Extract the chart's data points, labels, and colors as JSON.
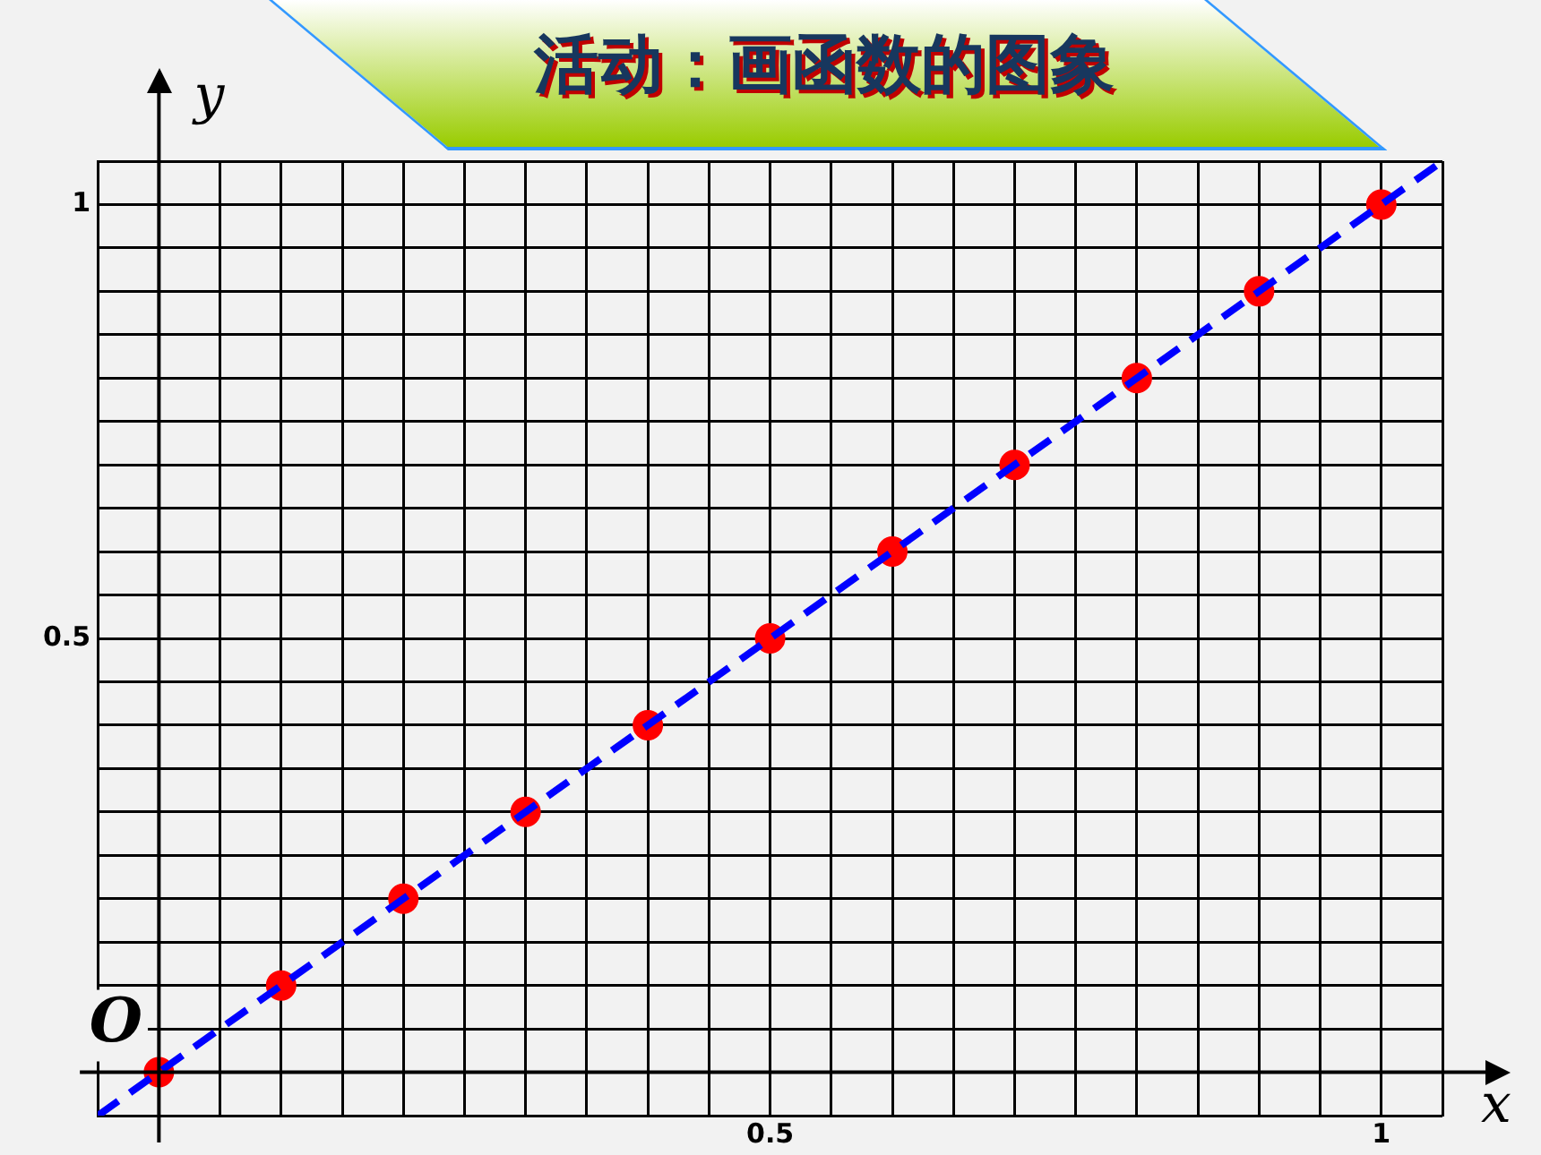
{
  "chart_data": {
    "type": "scatter",
    "title": "活动：画函数的图象",
    "xlabel": "x",
    "ylabel": "y",
    "annotations": [
      {
        "text": "O",
        "x": 0,
        "y": 0
      }
    ],
    "xlim": [
      -0.05,
      1.05
    ],
    "ylim": [
      -0.05,
      1.05
    ],
    "xticks": [
      {
        "value": -0.05,
        "label": null
      },
      {
        "value": 0,
        "label": null
      },
      {
        "value": 0.05,
        "label": null
      },
      {
        "value": 0.1,
        "label": null
      },
      {
        "value": 0.15,
        "label": null
      },
      {
        "value": 0.2,
        "label": null
      },
      {
        "value": 0.25,
        "label": null
      },
      {
        "value": 0.3,
        "label": null
      },
      {
        "value": 0.35,
        "label": null
      },
      {
        "value": 0.4,
        "label": null
      },
      {
        "value": 0.45,
        "label": null
      },
      0.5,
      {
        "value": 0.55,
        "label": null
      },
      {
        "value": 0.6,
        "label": null
      },
      {
        "value": 0.65,
        "label": null
      },
      {
        "value": 0.7,
        "label": null
      },
      {
        "value": 0.75,
        "label": null
      },
      {
        "value": 0.8,
        "label": null
      },
      {
        "value": 0.85,
        "label": null
      },
      {
        "value": 0.9,
        "label": null
      },
      {
        "value": 0.95,
        "label": null
      },
      1,
      {
        "value": 1.05,
        "label": null
      }
    ],
    "yticks": [
      {
        "value": -0.05,
        "label": null
      },
      {
        "value": 0,
        "label": null
      },
      {
        "value": 0.05,
        "label": null
      },
      {
        "value": 0.1,
        "label": null
      },
      {
        "value": 0.15,
        "label": null
      },
      {
        "value": 0.2,
        "label": null
      },
      {
        "value": 0.25,
        "label": null
      },
      {
        "value": 0.3,
        "label": null
      },
      {
        "value": 0.35,
        "label": null
      },
      {
        "value": 0.4,
        "label": null
      },
      {
        "value": 0.45,
        "label": null
      },
      0.5,
      {
        "value": 0.55,
        "label": null
      },
      {
        "value": 0.6,
        "label": null
      },
      {
        "value": 0.65,
        "label": null
      },
      {
        "value": 0.7,
        "label": null
      },
      {
        "value": 0.75,
        "label": null
      },
      {
        "value": 0.8,
        "label": null
      },
      {
        "value": 0.85,
        "label": null
      },
      {
        "value": 0.9,
        "label": null
      },
      {
        "value": 0.95,
        "label": null
      },
      1,
      {
        "value": 1.05,
        "label": null
      }
    ],
    "grid": true,
    "legend": false,
    "series": [
      {
        "type": "line",
        "color": "#0000ff",
        "line_style": "dashed",
        "marker": "none",
        "x": [
          -0.05,
          1.05
        ],
        "values": [
          -0.05,
          1.05
        ]
      },
      {
        "type": "scatter",
        "color": "#ff0000",
        "marker": "circle",
        "x": [
          0,
          0.1,
          0.2,
          0.3,
          0.4,
          0.5,
          0.6,
          0.7,
          0.8,
          0.9,
          1
        ],
        "values": [
          0,
          0.1,
          0.2,
          0.3,
          0.4,
          0.5,
          0.6,
          0.7,
          0.8,
          0.9,
          1
        ]
      }
    ]
  }
}
